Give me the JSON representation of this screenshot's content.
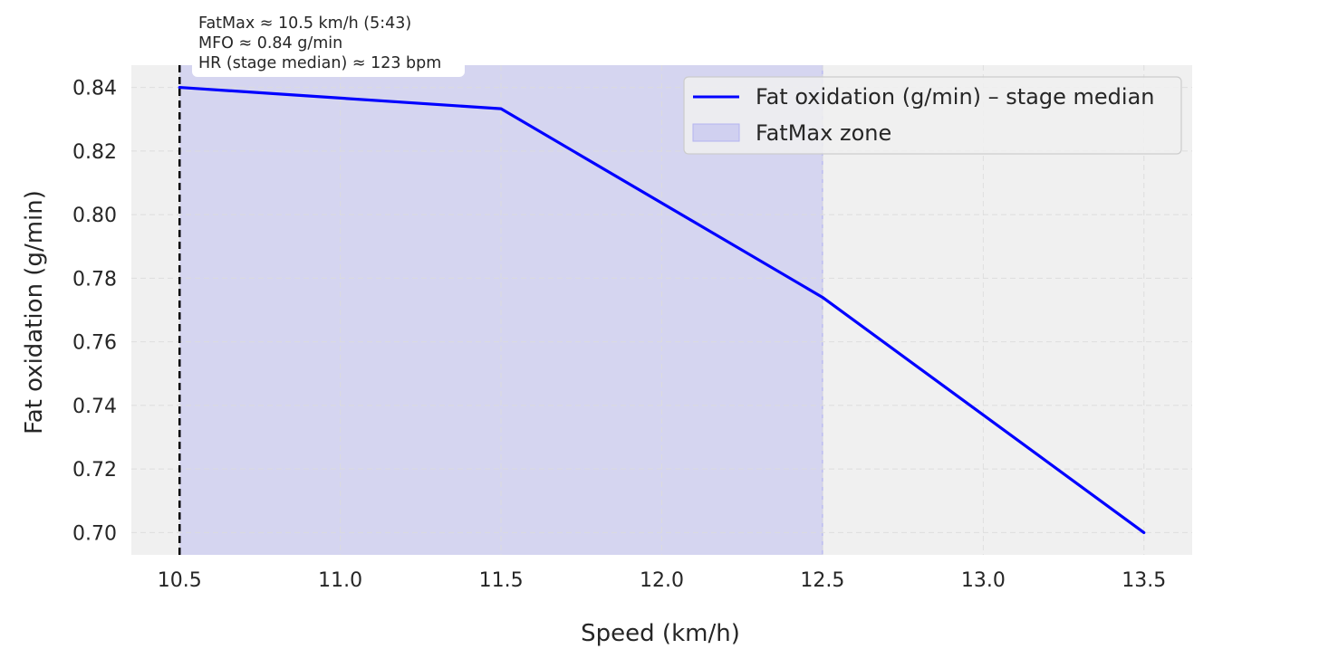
{
  "chart_data": {
    "type": "line",
    "xlabel": "Speed (km/h)",
    "ylabel": "Fat oxidation (g/min)",
    "xlim": [
      10.35,
      13.65
    ],
    "ylim": [
      0.693,
      0.847
    ],
    "xticks": [
      10.5,
      11.0,
      11.5,
      12.0,
      12.5,
      13.0,
      13.5
    ],
    "xtick_labels": [
      "10.5",
      "11.0",
      "11.5",
      "12.0",
      "12.5",
      "13.0",
      "13.5"
    ],
    "yticks": [
      0.7,
      0.72,
      0.74,
      0.76,
      0.78,
      0.8,
      0.82,
      0.84
    ],
    "ytick_labels": [
      "0.70",
      "0.72",
      "0.74",
      "0.76",
      "0.78",
      "0.80",
      "0.82",
      "0.84"
    ],
    "grid": true,
    "series": [
      {
        "name": "Fat oxidation (g/min) – stage median",
        "color": "#0000ff",
        "x": [
          10.5,
          11.5,
          12.5,
          13.5
        ],
        "values": [
          0.84,
          0.8333,
          0.774,
          0.7
        ]
      }
    ],
    "fatmax_zone": {
      "label": "FatMax zone",
      "x_start": 10.5,
      "x_end": 12.5,
      "color": "#b4b4f0"
    },
    "fatmax_line": {
      "x": 10.5,
      "color": "#000000"
    },
    "legend": {
      "position": "top-right",
      "entries": [
        "Fat oxidation (g/min) – stage median",
        "FatMax zone"
      ]
    },
    "annotation": {
      "lines": [
        "FatMax ≈ 10.5 km/h (5:43)",
        "MFO ≈ 0.84 g/min",
        "HR (stage median) ≈ 123 bpm"
      ]
    }
  },
  "colors": {
    "plot_background": "#f0f0f0",
    "grid": "#dcdcdc",
    "text": "#262626"
  }
}
